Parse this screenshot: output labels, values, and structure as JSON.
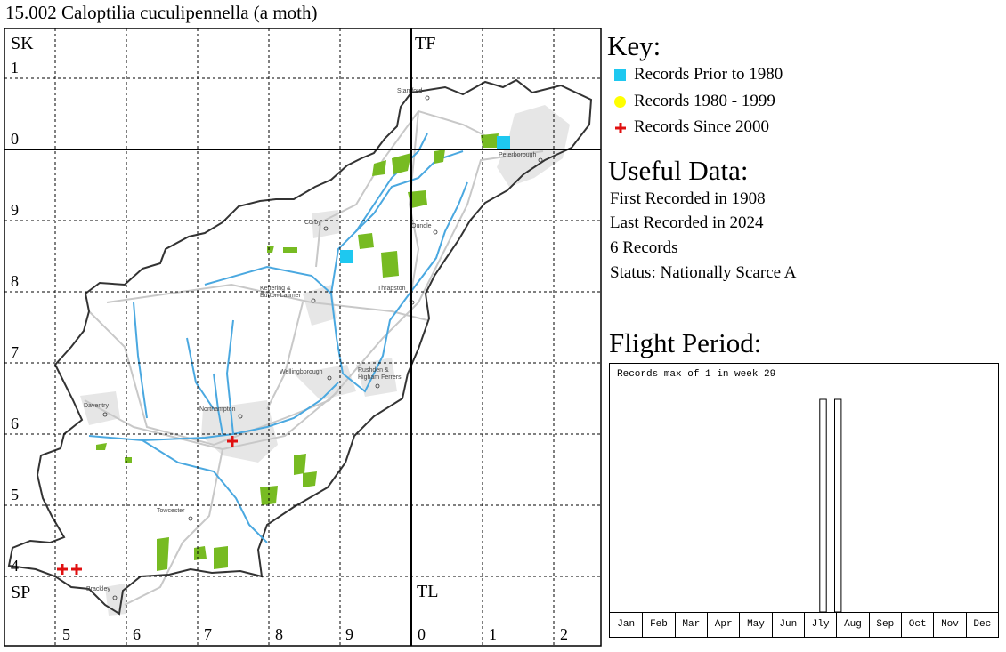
{
  "title": "15.002 Caloptilia cuculipennella (a moth)",
  "map": {
    "square_labels": [
      "SK",
      "TF",
      "SP",
      "TL"
    ],
    "left_axis_labels": [
      "1",
      "0",
      "9",
      "8",
      "7",
      "6",
      "5",
      "4"
    ],
    "bottom_axis_labels": [
      "5",
      "6",
      "7",
      "8",
      "9",
      "0",
      "1",
      "2"
    ],
    "places": [
      "Stamford",
      "Peterborough",
      "Corby",
      "Oundle",
      "Kettering &\nBurton Latimer",
      "Thrapston",
      "Wellingborough",
      "Rushden &\nHigham Ferrers",
      "Daventry",
      "Northampton",
      "Towcester",
      "Brackley"
    ],
    "colors": {
      "prior_1980": "#1ec8f0",
      "r1980_1999": "#ffff00",
      "since_2000": "#e01010",
      "woodland": "#77bb22",
      "river": "#4aa8e0",
      "urban": "#e2e2e2",
      "roads": "#c8c8c8",
      "border": "#333333"
    }
  },
  "key": {
    "heading": "Key:",
    "items": [
      {
        "label": "Records Prior to 1980",
        "symbol": "square",
        "color": "#1ec8f0"
      },
      {
        "label": "Records 1980 - 1999",
        "symbol": "circle",
        "color": "#ffff00"
      },
      {
        "label": "Records Since 2000",
        "symbol": "cross",
        "color": "#e01010"
      }
    ]
  },
  "useful": {
    "heading": "Useful Data:",
    "first": "First Recorded in 1908",
    "last": "Last Recorded in 2024",
    "records": "6 Records",
    "status": "Status: Nationally Scarce A"
  },
  "flight": {
    "heading": "Flight Period:",
    "caption": "Records max of 1 in week 29",
    "months": [
      "Jan",
      "Feb",
      "Mar",
      "Apr",
      "May",
      "Jun",
      "Jly",
      "Aug",
      "Sep",
      "Oct",
      "Nov",
      "Dec"
    ],
    "max_count": 1,
    "bars": [
      {
        "week": 29,
        "count": 1
      },
      {
        "week": 31,
        "count": 1
      }
    ]
  }
}
